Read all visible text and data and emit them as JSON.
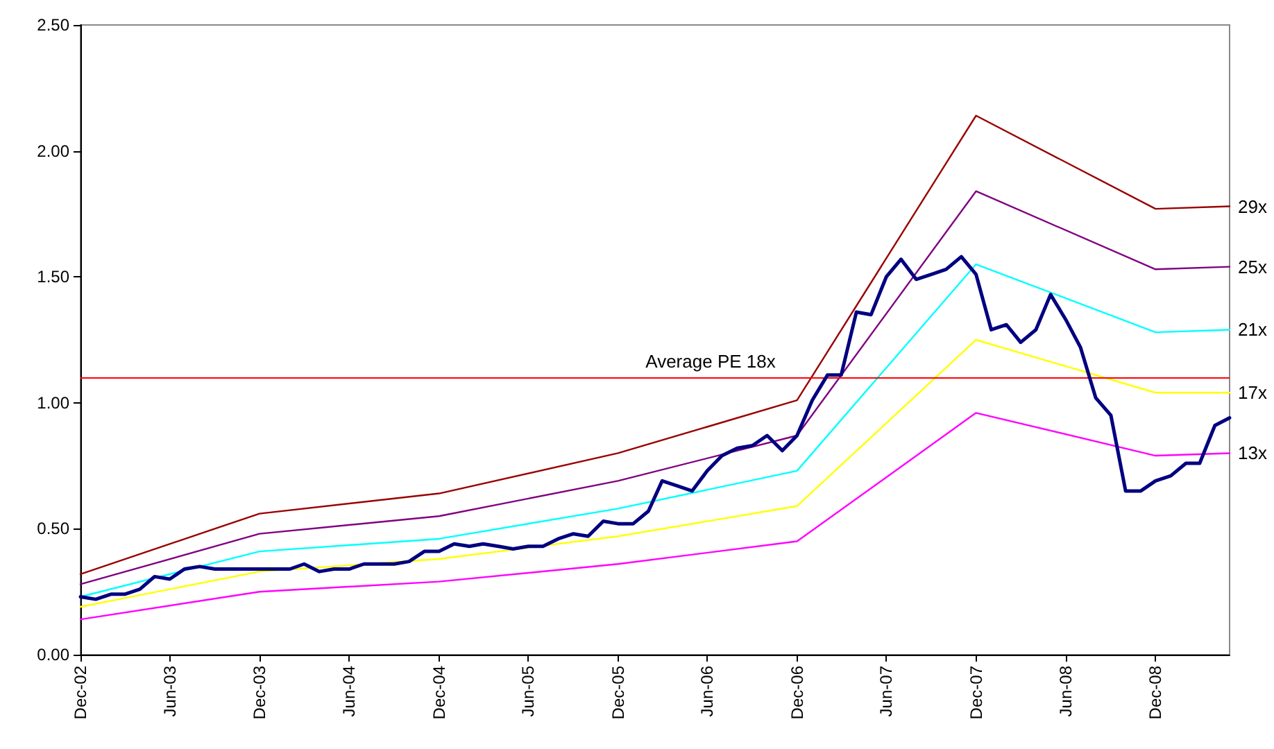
{
  "chart_data": {
    "type": "line",
    "x": [
      "2002-12",
      "2003-01",
      "2003-02",
      "2003-03",
      "2003-04",
      "2003-05",
      "2003-06",
      "2003-07",
      "2003-08",
      "2003-09",
      "2003-10",
      "2003-11",
      "2003-12",
      "2004-01",
      "2004-02",
      "2004-03",
      "2004-04",
      "2004-05",
      "2004-06",
      "2004-07",
      "2004-08",
      "2004-09",
      "2004-10",
      "2004-11",
      "2004-12",
      "2005-01",
      "2005-02",
      "2005-03",
      "2005-04",
      "2005-05",
      "2005-06",
      "2005-07",
      "2005-08",
      "2005-09",
      "2005-10",
      "2005-11",
      "2005-12",
      "2006-01",
      "2006-02",
      "2006-03",
      "2006-04",
      "2006-05",
      "2006-06",
      "2006-07",
      "2006-08",
      "2006-09",
      "2006-10",
      "2006-11",
      "2006-12",
      "2007-01",
      "2007-02",
      "2007-03",
      "2007-04",
      "2007-05",
      "2007-06",
      "2007-07",
      "2007-08",
      "2007-09",
      "2007-10",
      "2007-11",
      "2007-12",
      "2008-01",
      "2008-02",
      "2008-03",
      "2008-04",
      "2008-05",
      "2008-06",
      "2008-07",
      "2008-08",
      "2008-09",
      "2008-10",
      "2008-11",
      "2008-12",
      "2009-01",
      "2009-02",
      "2009-03",
      "2009-04",
      "2009-05"
    ],
    "series": [
      {
        "color": "#000080",
        "values": [
          0.23,
          0.22,
          0.24,
          0.24,
          0.26,
          0.31,
          0.3,
          0.34,
          0.35,
          0.34,
          0.34,
          0.34,
          0.34,
          0.34,
          0.34,
          0.36,
          0.33,
          0.34,
          0.34,
          0.36,
          0.36,
          0.36,
          0.37,
          0.41,
          0.41,
          0.44,
          0.43,
          0.44,
          0.43,
          0.42,
          0.43,
          0.43,
          0.46,
          0.48,
          0.47,
          0.53,
          0.52,
          0.52,
          0.57,
          0.69,
          0.67,
          0.65,
          0.73,
          0.79,
          0.82,
          0.83,
          0.87,
          0.81,
          0.87,
          1.01,
          1.11,
          1.11,
          1.36,
          1.35,
          1.5,
          1.57,
          1.49,
          1.51,
          1.53,
          1.58,
          1.51,
          1.29,
          1.31,
          1.24,
          1.29,
          1.43,
          1.33,
          1.22,
          1.02,
          0.95,
          0.65,
          0.65,
          0.69,
          0.71,
          0.76,
          0.76,
          0.91,
          0.94
        ]
      },
      {
        "name": "29x",
        "color": "#990000",
        "x": [
          "2002-12",
          "2003-12",
          "2004-12",
          "2005-12",
          "2006-12",
          "2007-12",
          "2008-12",
          "2009-05"
        ],
        "values": [
          0.32,
          0.56,
          0.64,
          0.8,
          1.01,
          2.14,
          1.77,
          1.78
        ]
      },
      {
        "name": "25x",
        "color": "#800080",
        "x": [
          "2002-12",
          "2003-12",
          "2004-12",
          "2005-12",
          "2006-12",
          "2007-12",
          "2008-12",
          "2009-05"
        ],
        "values": [
          0.28,
          0.48,
          0.55,
          0.69,
          0.87,
          1.84,
          1.53,
          1.54
        ]
      },
      {
        "name": "21x",
        "color": "#00ffff",
        "x": [
          "2002-12",
          "2003-12",
          "2004-12",
          "2005-12",
          "2006-12",
          "2007-12",
          "2008-12",
          "2009-05"
        ],
        "values": [
          0.23,
          0.41,
          0.46,
          0.58,
          0.73,
          1.55,
          1.28,
          1.29
        ]
      },
      {
        "name": "17x",
        "color": "#ffff00",
        "x": [
          "2002-12",
          "2003-12",
          "2004-12",
          "2005-12",
          "2006-12",
          "2007-12",
          "2008-12",
          "2009-05"
        ],
        "values": [
          0.19,
          0.33,
          0.38,
          0.47,
          0.59,
          1.25,
          1.04,
          1.04
        ]
      },
      {
        "name": "13x",
        "color": "#ff00ff",
        "x": [
          "2002-12",
          "2003-12",
          "2004-12",
          "2005-12",
          "2006-12",
          "2007-12",
          "2008-12",
          "2009-05"
        ],
        "values": [
          0.14,
          0.25,
          0.29,
          0.36,
          0.45,
          0.96,
          0.79,
          0.8
        ]
      }
    ],
    "xlim": [
      "2002-12",
      "2009-05"
    ],
    "xticks": [
      {
        "value": "2002-12",
        "label": "Dec-02"
      },
      {
        "value": "2003-06",
        "label": "Jun-03"
      },
      {
        "value": "2003-12",
        "label": "Dec-03"
      },
      {
        "value": "2004-06",
        "label": "Jun-04"
      },
      {
        "value": "2004-12",
        "label": "Dec-04"
      },
      {
        "value": "2005-06",
        "label": "Jun-05"
      },
      {
        "value": "2005-12",
        "label": "Dec-05"
      },
      {
        "value": "2006-06",
        "label": "Jun-06"
      },
      {
        "value": "2006-12",
        "label": "Dec-06"
      },
      {
        "value": "2007-06",
        "label": "Jun-07"
      },
      {
        "value": "2007-12",
        "label": "Dec-07"
      },
      {
        "value": "2008-06",
        "label": "Jun-08"
      },
      {
        "value": "2008-12",
        "label": "Dec-08"
      }
    ],
    "ylim": [
      0,
      2.5
    ],
    "yticks": [
      {
        "value": 0,
        "label": "0.00"
      },
      {
        "value": 0.5,
        "label": "0.50"
      },
      {
        "value": 1,
        "label": "1.00"
      },
      {
        "value": 1.5,
        "label": "1.50"
      },
      {
        "value": 2,
        "label": "2.00"
      },
      {
        "value": 2.5,
        "label": "2.50"
      }
    ],
    "ref_lines": [
      {
        "axis": "y",
        "value": 1.1,
        "label": "Average PE 18x",
        "color": "#ff0000"
      }
    ],
    "grid": false,
    "legend": false,
    "marker": "none",
    "line_style": "solid"
  }
}
